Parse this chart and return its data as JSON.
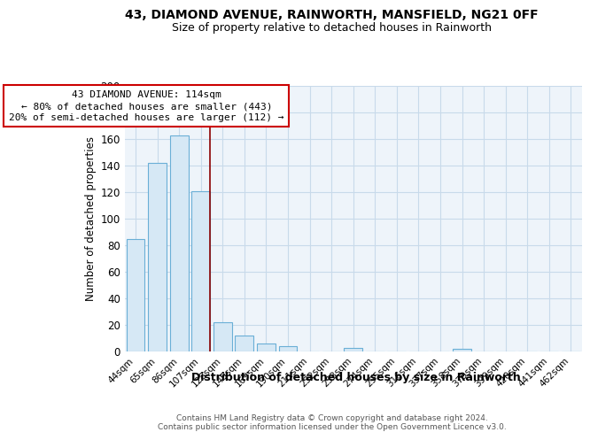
{
  "title": "43, DIAMOND AVENUE, RAINWORTH, MANSFIELD, NG21 0FF",
  "subtitle": "Size of property relative to detached houses in Rainworth",
  "bar_labels": [
    "44sqm",
    "65sqm",
    "86sqm",
    "107sqm",
    "128sqm",
    "149sqm",
    "169sqm",
    "190sqm",
    "211sqm",
    "232sqm",
    "253sqm",
    "274sqm",
    "295sqm",
    "316sqm",
    "337sqm",
    "358sqm",
    "379sqm",
    "399sqm",
    "420sqm",
    "441sqm",
    "462sqm"
  ],
  "bar_values": [
    85,
    142,
    163,
    121,
    22,
    12,
    6,
    4,
    0,
    0,
    3,
    0,
    0,
    0,
    0,
    2,
    0,
    0,
    0,
    0,
    0
  ],
  "bar_face_color": "#d6e8f5",
  "bar_edge_color": "#6aafd6",
  "vline_x": 3.4,
  "vline_color": "#8b0000",
  "annotation_title": "43 DIAMOND AVENUE: 114sqm",
  "annotation_line1": "← 80% of detached houses are smaller (443)",
  "annotation_line2": "20% of semi-detached houses are larger (112) →",
  "annotation_box_color": "#cc0000",
  "xlabel": "Distribution of detached houses by size in Rainworth",
  "ylabel": "Number of detached properties",
  "ylim": [
    0,
    200
  ],
  "yticks": [
    0,
    20,
    40,
    60,
    80,
    100,
    120,
    140,
    160,
    180,
    200
  ],
  "footer1": "Contains HM Land Registry data © Crown copyright and database right 2024.",
  "footer2": "Contains public sector information licensed under the Open Government Licence v3.0.",
  "bg_color": "#ffffff",
  "grid_color": "#c8daea",
  "plot_bg_color": "#eef4fa"
}
